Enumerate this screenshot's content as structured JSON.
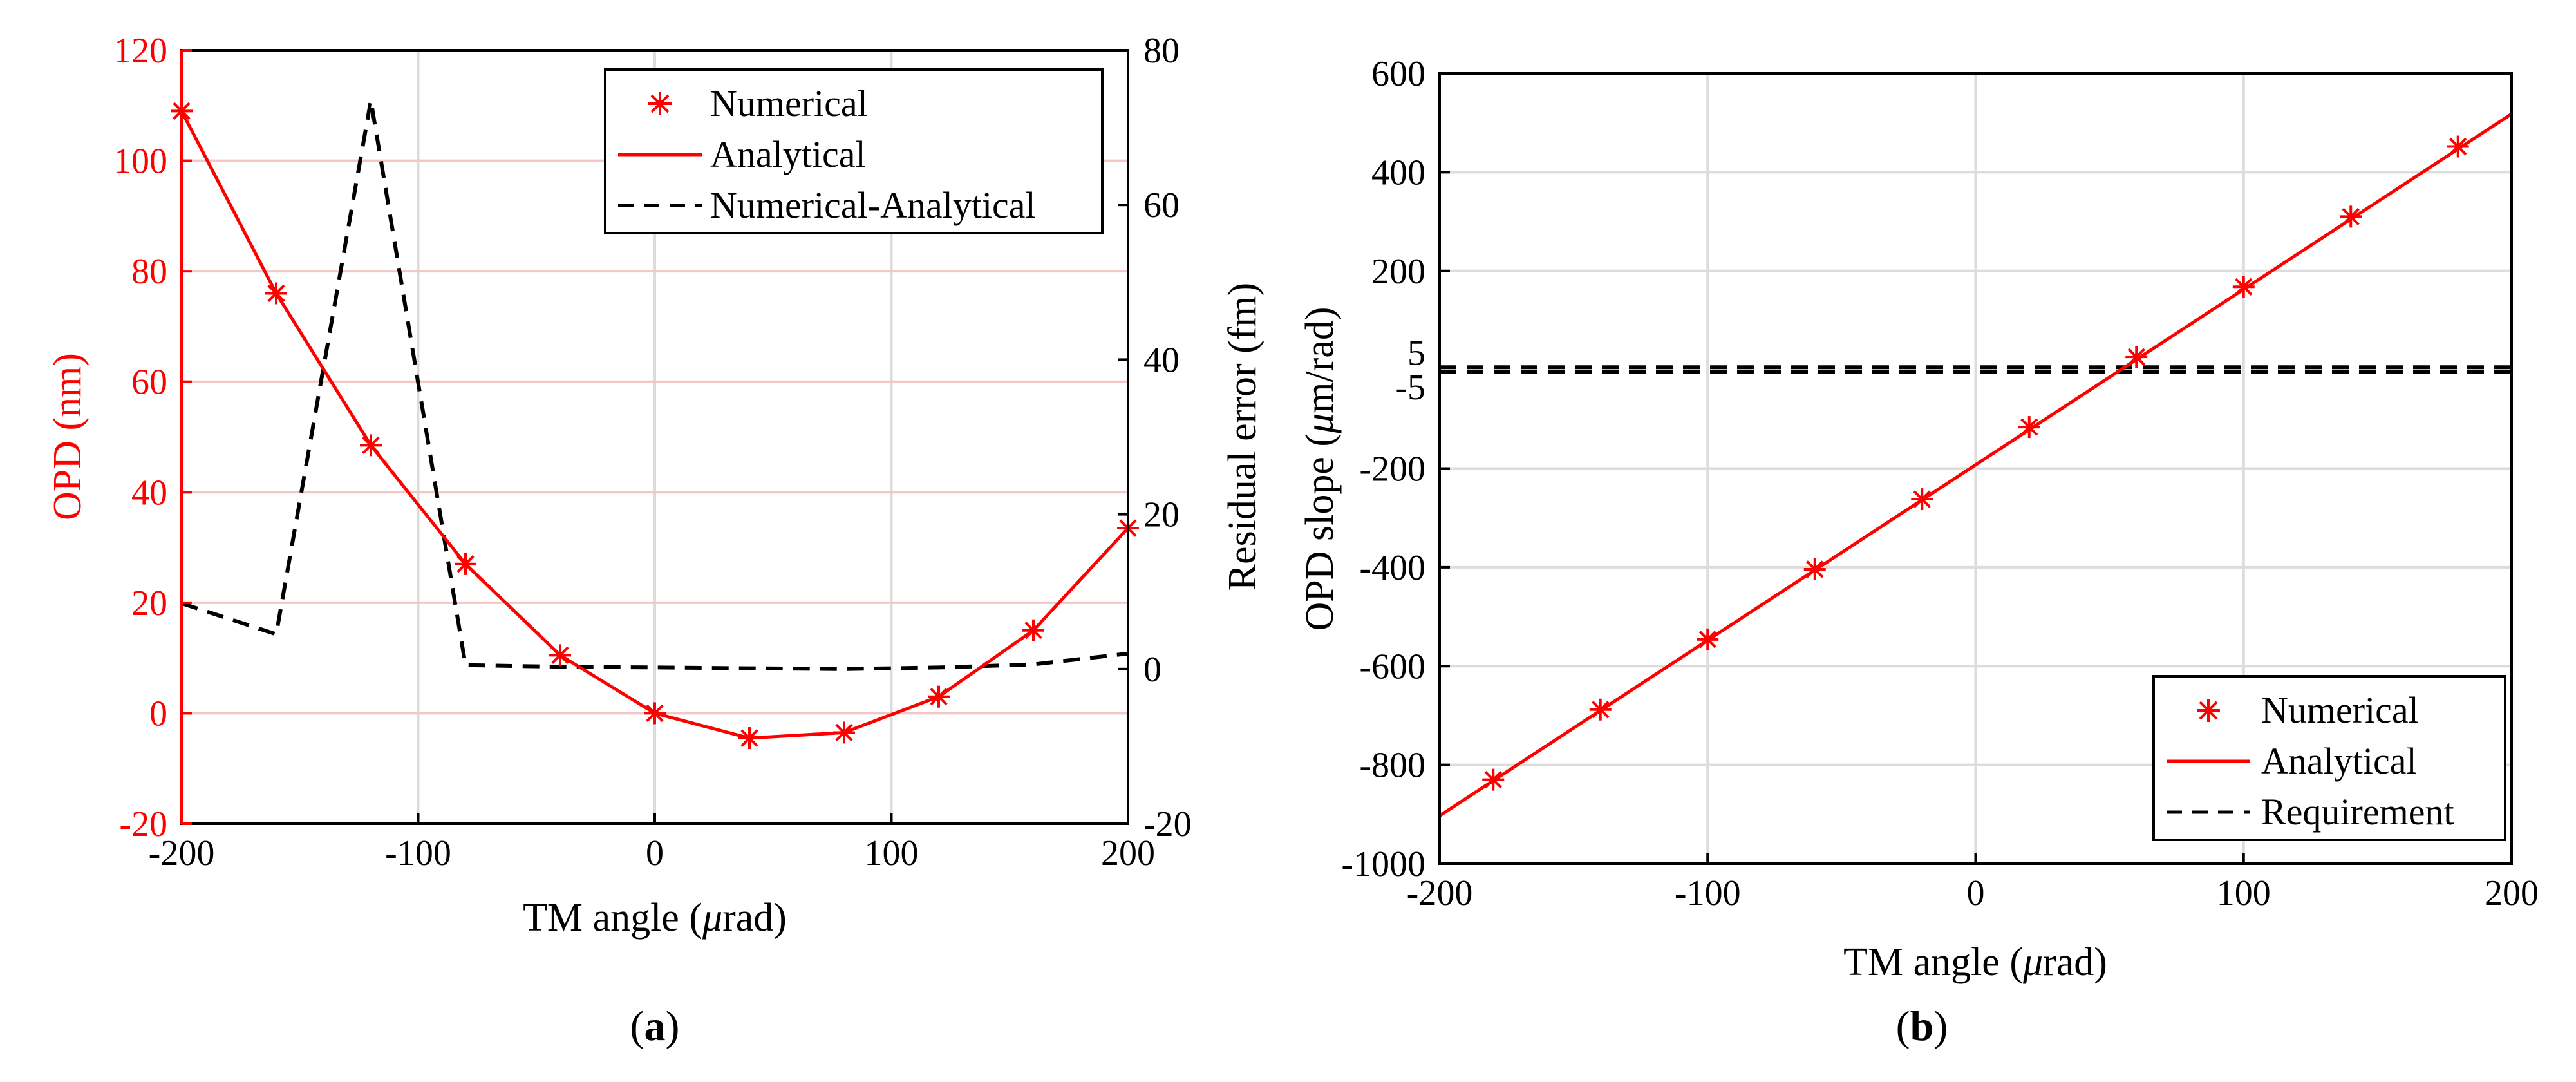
{
  "colors": {
    "series": "#ff0000",
    "diff": "#000000",
    "grid": "#dcdcdc",
    "grid_red": "#f4c6c6",
    "axis": "#000000"
  },
  "chart_data": [
    {
      "id": "a",
      "type": "line",
      "panel_label_pre": "(",
      "panel_label_letter": "a",
      "panel_label_post": ")",
      "xlabel_pre": "TM angle (",
      "xlabel_mu": "μ",
      "xlabel_post": "rad)",
      "ylabel": "OPD (nm)",
      "y2label": "Residual error (fm)",
      "xlim": [
        -200,
        200
      ],
      "ylim": [
        -20,
        120
      ],
      "y2lim": [
        -20,
        80
      ],
      "xticks": [
        "-200",
        "-100",
        "0",
        "100",
        "200"
      ],
      "yticks": [
        "-20",
        "0",
        "20",
        "40",
        "60",
        "80",
        "100",
        "120"
      ],
      "y2ticks": [
        "-20",
        "0",
        "20",
        "40",
        "60",
        "80"
      ],
      "legend_position": "top-right",
      "legend": [
        "Numerical",
        "Analytical",
        "Numerical-Analytical"
      ],
      "series": [
        {
          "name": "Numerical",
          "style": "markers",
          "x": [
            -200,
            -160,
            -120,
            -80,
            -40,
            0,
            40,
            80,
            120,
            160,
            200
          ],
          "y": [
            109,
            76,
            48.5,
            27,
            10.5,
            0,
            -4.5,
            -3.5,
            3,
            15,
            33.5
          ]
        },
        {
          "name": "Analytical",
          "style": "line",
          "x": [
            -200,
            -160,
            -120,
            -80,
            -40,
            0,
            40,
            80,
            120,
            160,
            200
          ],
          "y": [
            109,
            76,
            48.5,
            27,
            10.5,
            0,
            -4.5,
            -3.5,
            3,
            15,
            33.5
          ]
        },
        {
          "name": "Numerical-Analytical",
          "style": "dashed",
          "axis": "right",
          "x": [
            -200,
            -160,
            -120,
            -80,
            -40,
            0,
            40,
            80,
            120,
            160,
            200
          ],
          "y": [
            8.5,
            4.5,
            73.5,
            0.5,
            0.3,
            0.2,
            0.1,
            0,
            0.2,
            0.6,
            2
          ]
        }
      ]
    },
    {
      "id": "b",
      "type": "line",
      "panel_label_pre": "(",
      "panel_label_letter": "b",
      "panel_label_post": ")",
      "xlabel_pre": "TM angle (",
      "xlabel_mu": "μ",
      "xlabel_post": "rad)",
      "ylabel_pre": "OPD slope (",
      "ylabel_mu": "μ",
      "ylabel_post": "m/rad)",
      "xlim": [
        -200,
        200
      ],
      "ylim": [
        -1000,
        600
      ],
      "xticks": [
        "-200",
        "-100",
        "0",
        "100",
        "200"
      ],
      "yticks": [
        "-1000",
        "-800",
        "-600",
        "-400",
        "-200",
        "-5",
        "5",
        "200",
        "400",
        "600"
      ],
      "ytick_values": [
        -1000,
        -800,
        -600,
        -400,
        -200,
        -5,
        5,
        200,
        400,
        600
      ],
      "legend_position": "bottom-right",
      "legend": [
        "Numerical",
        "Analytical",
        "Requirement"
      ],
      "series": [
        {
          "name": "Numerical",
          "style": "markers",
          "x": [
            -180,
            -140,
            -100,
            -60,
            -20,
            20,
            60,
            100,
            140,
            180
          ],
          "y": [
            -830,
            -688,
            -546,
            -404,
            -262,
            -116,
            26,
            168,
            310,
            452
          ]
        },
        {
          "name": "Analytical",
          "style": "line",
          "x": [
            -200,
            200
          ],
          "y": [
            -903,
            518
          ]
        },
        {
          "name": "Requirement",
          "style": "dashed",
          "x": [
            -200,
            200
          ],
          "y": [
            5,
            5
          ],
          "y_lower": -5
        }
      ]
    }
  ]
}
